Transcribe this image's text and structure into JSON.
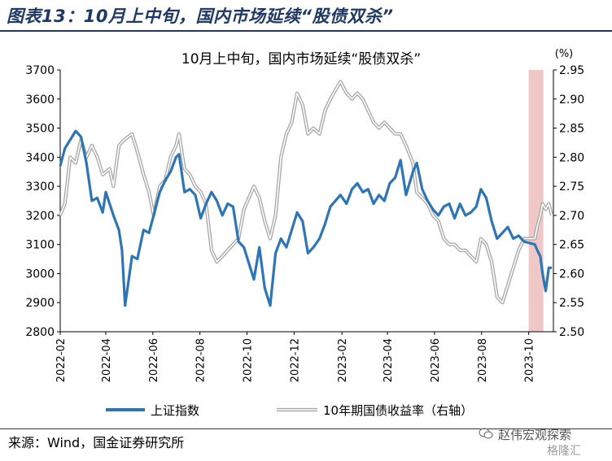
{
  "figure_title": "图表13：10月上中旬，国内市场延续“股债双杀”",
  "source_note": "来源：Wind，国金证券研究所",
  "watermark": {
    "line1": "赵伟宏观探索",
    "line2": "格隆汇",
    "icon": "wechat-icon"
  },
  "colors": {
    "accent": "#1f3864",
    "index_line": "#2e75b6",
    "yield_line": "#a6a6a6",
    "highlight": "#efc7c7"
  },
  "chart_data": {
    "type": "line",
    "title": "10月上中旬，国内市场延续“股债双杀”",
    "unit_right": "(%)",
    "x_ticks": [
      "2022-02",
      "2022-04",
      "2022-06",
      "2022-08",
      "2022-10",
      "2022-12",
      "2023-02",
      "2023-04",
      "2023-06",
      "2023-08",
      "2023-10"
    ],
    "y_left": {
      "ticks": [
        2800,
        2900,
        3000,
        3100,
        3200,
        3300,
        3400,
        3500,
        3600,
        3700
      ],
      "lim": [
        2800,
        3700
      ]
    },
    "y_right": {
      "ticks": [
        "2.50",
        "2.55",
        "2.60",
        "2.65",
        "2.70",
        "2.75",
        "2.80",
        "2.85",
        "2.90",
        "2.95"
      ],
      "lim": [
        2.5,
        2.95
      ]
    },
    "highlight_range": [
      "2023-10-01",
      "2023-10-20"
    ],
    "legend_position": "bottom",
    "series": [
      {
        "name": "上证指数",
        "axis": "left",
        "points": [
          [
            "2022-02-01",
            3370
          ],
          [
            "2022-02-07",
            3430
          ],
          [
            "2022-02-14",
            3460
          ],
          [
            "2022-02-21",
            3490
          ],
          [
            "2022-02-28",
            3470
          ],
          [
            "2022-03-07",
            3380
          ],
          [
            "2022-03-14",
            3250
          ],
          [
            "2022-03-21",
            3260
          ],
          [
            "2022-03-28",
            3210
          ],
          [
            "2022-04-01",
            3280
          ],
          [
            "2022-04-06",
            3240
          ],
          [
            "2022-04-11",
            3200
          ],
          [
            "2022-04-18",
            3150
          ],
          [
            "2022-04-22",
            3080
          ],
          [
            "2022-04-26",
            2890
          ],
          [
            "2022-05-05",
            3060
          ],
          [
            "2022-05-12",
            3050
          ],
          [
            "2022-05-20",
            3150
          ],
          [
            "2022-05-27",
            3140
          ],
          [
            "2022-06-02",
            3200
          ],
          [
            "2022-06-10",
            3280
          ],
          [
            "2022-06-17",
            3320
          ],
          [
            "2022-06-24",
            3350
          ],
          [
            "2022-07-01",
            3400
          ],
          [
            "2022-07-05",
            3410
          ],
          [
            "2022-07-12",
            3280
          ],
          [
            "2022-07-19",
            3290
          ],
          [
            "2022-07-26",
            3270
          ],
          [
            "2022-08-02",
            3190
          ],
          [
            "2022-08-09",
            3240
          ],
          [
            "2022-08-16",
            3280
          ],
          [
            "2022-08-23",
            3250
          ],
          [
            "2022-08-30",
            3200
          ],
          [
            "2022-09-06",
            3240
          ],
          [
            "2022-09-13",
            3230
          ],
          [
            "2022-09-20",
            3110
          ],
          [
            "2022-09-27",
            3090
          ],
          [
            "2022-10-10",
            2980
          ],
          [
            "2022-10-17",
            3090
          ],
          [
            "2022-10-24",
            2950
          ],
          [
            "2022-10-31",
            2890
          ],
          [
            "2022-11-07",
            3070
          ],
          [
            "2022-11-14",
            3120
          ],
          [
            "2022-11-21",
            3090
          ],
          [
            "2022-11-28",
            3150
          ],
          [
            "2022-12-05",
            3210
          ],
          [
            "2022-12-12",
            3180
          ],
          [
            "2022-12-19",
            3070
          ],
          [
            "2022-12-26",
            3090
          ],
          [
            "2023-01-03",
            3120
          ],
          [
            "2023-01-10",
            3170
          ],
          [
            "2023-01-17",
            3230
          ],
          [
            "2023-01-30",
            3270
          ],
          [
            "2023-02-07",
            3240
          ],
          [
            "2023-02-14",
            3290
          ],
          [
            "2023-02-21",
            3310
          ],
          [
            "2023-02-28",
            3280
          ],
          [
            "2023-03-07",
            3290
          ],
          [
            "2023-03-14",
            3240
          ],
          [
            "2023-03-21",
            3270
          ],
          [
            "2023-03-28",
            3250
          ],
          [
            "2023-04-04",
            3310
          ],
          [
            "2023-04-11",
            3330
          ],
          [
            "2023-04-18",
            3390
          ],
          [
            "2023-04-25",
            3270
          ],
          [
            "2023-05-04",
            3350
          ],
          [
            "2023-05-09",
            3380
          ],
          [
            "2023-05-16",
            3290
          ],
          [
            "2023-05-23",
            3250
          ],
          [
            "2023-05-30",
            3220
          ],
          [
            "2023-06-06",
            3200
          ],
          [
            "2023-06-13",
            3230
          ],
          [
            "2023-06-20",
            3240
          ],
          [
            "2023-06-27",
            3190
          ],
          [
            "2023-07-04",
            3240
          ],
          [
            "2023-07-11",
            3200
          ],
          [
            "2023-07-18",
            3210
          ],
          [
            "2023-07-25",
            3230
          ],
          [
            "2023-07-31",
            3290
          ],
          [
            "2023-08-07",
            3260
          ],
          [
            "2023-08-14",
            3180
          ],
          [
            "2023-08-21",
            3120
          ],
          [
            "2023-08-28",
            3140
          ],
          [
            "2023-09-04",
            3160
          ],
          [
            "2023-09-11",
            3120
          ],
          [
            "2023-09-18",
            3130
          ],
          [
            "2023-09-25",
            3110
          ],
          [
            "2023-10-09",
            3100
          ],
          [
            "2023-10-12",
            3080
          ],
          [
            "2023-10-16",
            3060
          ],
          [
            "2023-10-19",
            3000
          ],
          [
            "2023-10-23",
            2940
          ],
          [
            "2023-10-27",
            3020
          ],
          [
            "2023-10-31",
            3020
          ]
        ]
      },
      {
        "name": "10年期国债收益率（右轴）",
        "axis": "right",
        "points": [
          [
            "2022-02-01",
            2.7
          ],
          [
            "2022-02-07",
            2.72
          ],
          [
            "2022-02-14",
            2.8
          ],
          [
            "2022-02-21",
            2.79
          ],
          [
            "2022-02-28",
            2.83
          ],
          [
            "2022-03-07",
            2.8
          ],
          [
            "2022-03-14",
            2.82
          ],
          [
            "2022-03-21",
            2.8
          ],
          [
            "2022-03-28",
            2.77
          ],
          [
            "2022-04-06",
            2.78
          ],
          [
            "2022-04-11",
            2.75
          ],
          [
            "2022-04-18",
            2.82
          ],
          [
            "2022-04-25",
            2.83
          ],
          [
            "2022-05-05",
            2.84
          ],
          [
            "2022-05-12",
            2.81
          ],
          [
            "2022-05-20",
            2.77
          ],
          [
            "2022-05-27",
            2.74
          ],
          [
            "2022-06-02",
            2.7
          ],
          [
            "2022-06-10",
            2.75
          ],
          [
            "2022-06-17",
            2.76
          ],
          [
            "2022-06-24",
            2.8
          ],
          [
            "2022-07-01",
            2.82
          ],
          [
            "2022-07-05",
            2.84
          ],
          [
            "2022-07-12",
            2.78
          ],
          [
            "2022-07-19",
            2.77
          ],
          [
            "2022-07-26",
            2.75
          ],
          [
            "2022-08-02",
            2.74
          ],
          [
            "2022-08-09",
            2.72
          ],
          [
            "2022-08-16",
            2.64
          ],
          [
            "2022-08-23",
            2.62
          ],
          [
            "2022-08-30",
            2.63
          ],
          [
            "2022-09-06",
            2.64
          ],
          [
            "2022-09-13",
            2.65
          ],
          [
            "2022-09-20",
            2.66
          ],
          [
            "2022-09-27",
            2.71
          ],
          [
            "2022-10-10",
            2.75
          ],
          [
            "2022-10-17",
            2.73
          ],
          [
            "2022-10-24",
            2.69
          ],
          [
            "2022-10-31",
            2.66
          ],
          [
            "2022-11-07",
            2.7
          ],
          [
            "2022-11-14",
            2.8
          ],
          [
            "2022-11-21",
            2.84
          ],
          [
            "2022-11-28",
            2.86
          ],
          [
            "2022-12-05",
            2.91
          ],
          [
            "2022-12-12",
            2.89
          ],
          [
            "2022-12-19",
            2.84
          ],
          [
            "2022-12-26",
            2.85
          ],
          [
            "2023-01-03",
            2.84
          ],
          [
            "2023-01-10",
            2.88
          ],
          [
            "2023-01-17",
            2.9
          ],
          [
            "2023-01-30",
            2.93
          ],
          [
            "2023-02-07",
            2.91
          ],
          [
            "2023-02-14",
            2.9
          ],
          [
            "2023-02-21",
            2.91
          ],
          [
            "2023-02-28",
            2.9
          ],
          [
            "2023-03-07",
            2.88
          ],
          [
            "2023-03-14",
            2.86
          ],
          [
            "2023-03-21",
            2.85
          ],
          [
            "2023-03-28",
            2.86
          ],
          [
            "2023-04-04",
            2.85
          ],
          [
            "2023-04-11",
            2.84
          ],
          [
            "2023-04-18",
            2.84
          ],
          [
            "2023-04-25",
            2.82
          ],
          [
            "2023-05-04",
            2.79
          ],
          [
            "2023-05-09",
            2.74
          ],
          [
            "2023-05-16",
            2.73
          ],
          [
            "2023-05-23",
            2.72
          ],
          [
            "2023-05-30",
            2.7
          ],
          [
            "2023-06-06",
            2.69
          ],
          [
            "2023-06-13",
            2.66
          ],
          [
            "2023-06-20",
            2.65
          ],
          [
            "2023-06-27",
            2.65
          ],
          [
            "2023-07-04",
            2.64
          ],
          [
            "2023-07-11",
            2.64
          ],
          [
            "2023-07-18",
            2.63
          ],
          [
            "2023-07-25",
            2.62
          ],
          [
            "2023-07-31",
            2.66
          ],
          [
            "2023-08-07",
            2.65
          ],
          [
            "2023-08-14",
            2.62
          ],
          [
            "2023-08-21",
            2.56
          ],
          [
            "2023-08-28",
            2.55
          ],
          [
            "2023-09-04",
            2.58
          ],
          [
            "2023-09-11",
            2.61
          ],
          [
            "2023-09-18",
            2.64
          ],
          [
            "2023-09-25",
            2.66
          ],
          [
            "2023-10-09",
            2.66
          ],
          [
            "2023-10-12",
            2.68
          ],
          [
            "2023-10-16",
            2.7
          ],
          [
            "2023-10-19",
            2.72
          ],
          [
            "2023-10-23",
            2.71
          ],
          [
            "2023-10-27",
            2.72
          ],
          [
            "2023-10-31",
            2.7
          ]
        ]
      }
    ]
  }
}
